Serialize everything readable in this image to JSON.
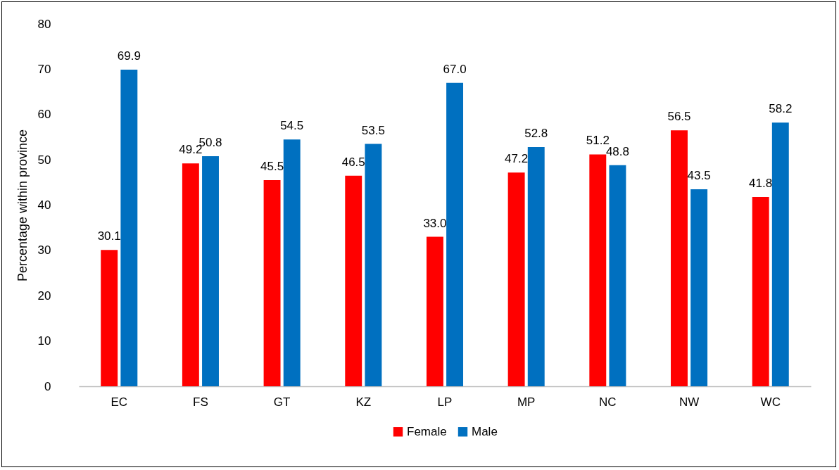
{
  "chart_data": {
    "type": "bar",
    "ylabel": "Percentage within province",
    "categories": [
      "EC",
      "FS",
      "GT",
      "KZ",
      "LP",
      "MP",
      "NC",
      "NW",
      "WC"
    ],
    "series": [
      {
        "name": "Female",
        "color": "#ff0000",
        "values": [
          30.1,
          49.2,
          45.5,
          46.5,
          33.0,
          47.2,
          51.2,
          56.5,
          41.8
        ],
        "value_labels": [
          "30.1",
          "49.2",
          "45.5",
          "46.5",
          "33.0",
          "47.2",
          "51.2",
          "56.5",
          "41.8"
        ]
      },
      {
        "name": "Male",
        "color": "#0070c0",
        "values": [
          69.9,
          50.8,
          54.5,
          53.5,
          67.0,
          52.8,
          48.8,
          43.5,
          58.2
        ],
        "value_labels": [
          "69.9",
          "50.8",
          "54.5",
          "53.5",
          "67.0",
          "52.8",
          "48.8",
          "43.5",
          "58.2"
        ]
      }
    ],
    "ylim": [
      0,
      80
    ],
    "yticks": [
      0,
      10,
      20,
      30,
      40,
      50,
      60,
      70,
      80
    ],
    "grid": false,
    "legend": "bottom"
  }
}
